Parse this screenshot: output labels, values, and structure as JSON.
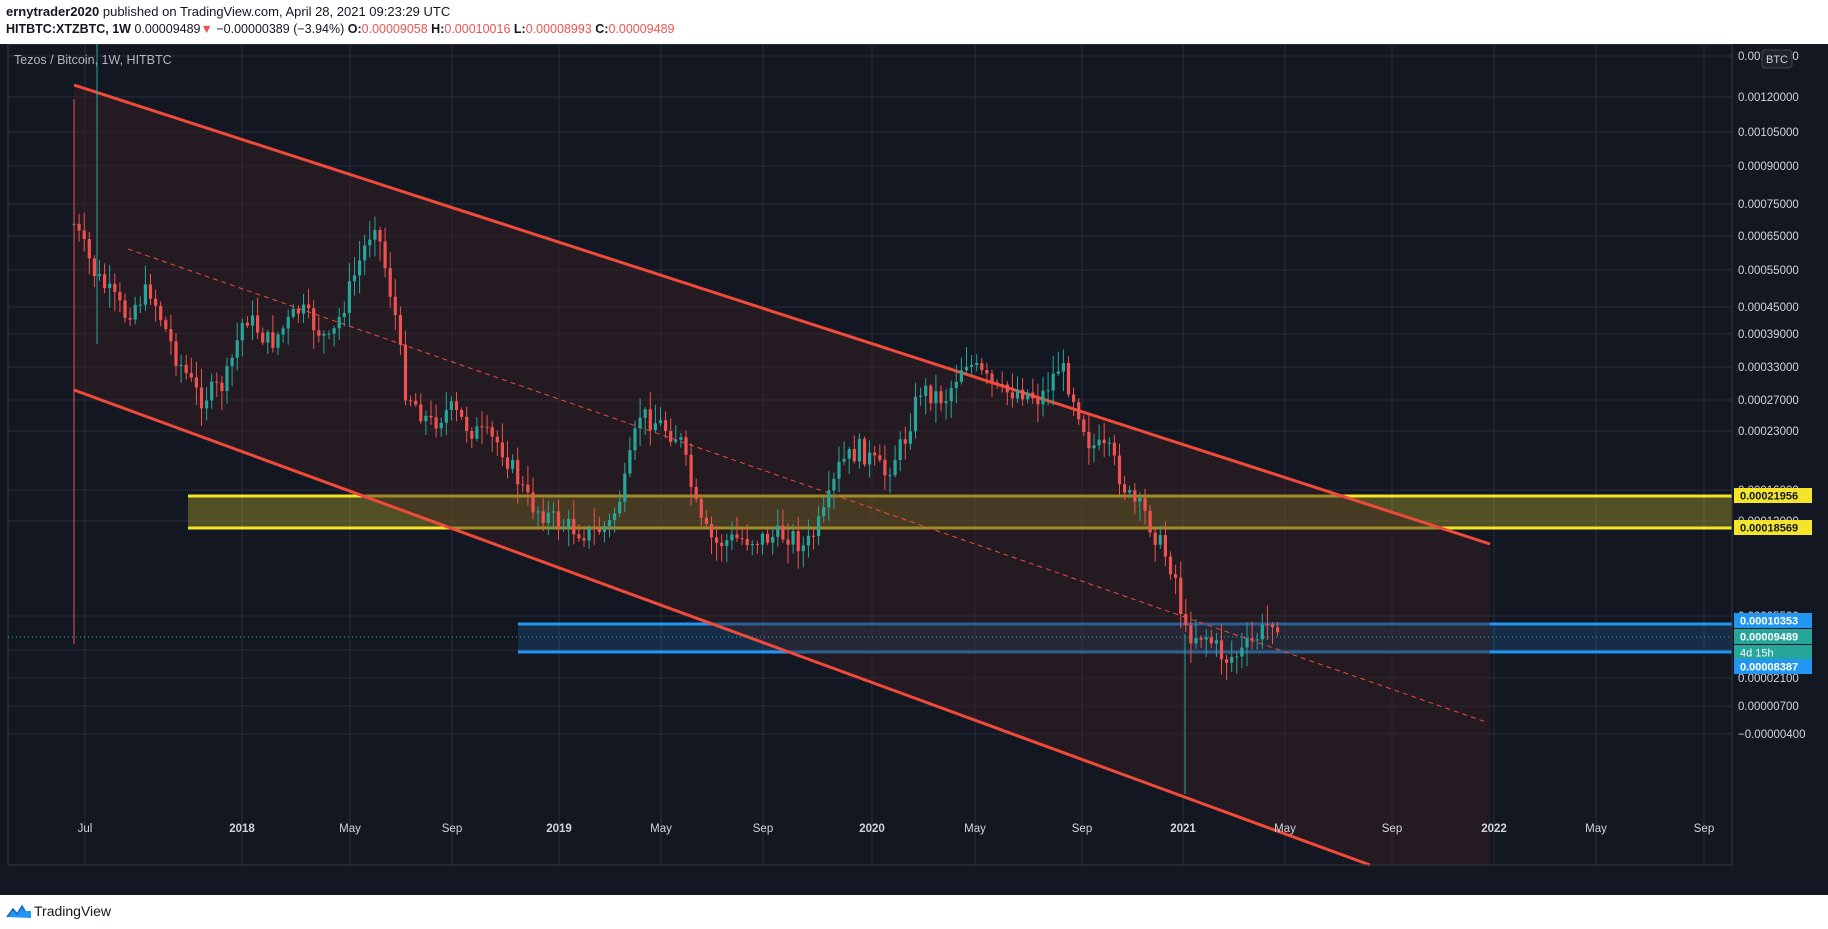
{
  "header": {
    "author": "ernytrader2020",
    "published_text": "published on TradingView.com, April 28, 2021 09:23:29 UTC",
    "symbol": "HITBTC:XTZBTC, 1W",
    "last": "0.00009489",
    "arrow": "▼",
    "change": "−0.00000389 (−3.94%)",
    "o_label": "O:",
    "o_value": "0.00009058",
    "h_label": "H:",
    "h_value": "0.00010016",
    "l_label": "L:",
    "l_value": "0.00008993",
    "c_label": "C:",
    "c_value": "0.00009489"
  },
  "chart_legend": "Tezos / Bitcoin, 1W, HITBTC",
  "currency_label": "BTC",
  "footer": {
    "brand": "TradingView"
  },
  "colors": {
    "background": "#131722",
    "up": "#26a69a",
    "down": "#ef5350",
    "channel": "#f04a3a",
    "yellow_zone": "#f5e52a",
    "blue_zone": "#2196f3",
    "grid": "#2a2e39"
  },
  "chart_data": {
    "type": "candlestick",
    "x_tick_labels": [
      "Jul",
      "2018",
      "May",
      "Sep",
      "2019",
      "May",
      "Sep",
      "2020",
      "May",
      "Sep",
      "2021",
      "May",
      "Sep",
      "2022",
      "May",
      "Sep"
    ],
    "y_tick_labels": [
      "0.00135000",
      "0.00120000",
      "0.00105000",
      "0.00090000",
      "0.00075000",
      "0.00065000",
      "0.00055000",
      "0.00045000",
      "0.00039000",
      "0.00033000",
      "0.00027000",
      "0.00023000",
      "0.00016000",
      "0.00013000",
      "0.00005500",
      "0.00003500",
      "0.00002100",
      "0.00000700",
      "−0.00000400"
    ],
    "price_labels": [
      {
        "value": "0.00021956",
        "kind": "yellow"
      },
      {
        "value": "0.00018569",
        "kind": "yellow"
      },
      {
        "value": "0.00010353",
        "kind": "blue"
      },
      {
        "value": "0.00009489",
        "kind": "current"
      },
      {
        "value": "4d 15h",
        "kind": "countdown"
      },
      {
        "value": "0.00008387",
        "kind": "blue"
      }
    ],
    "zones": [
      {
        "name": "resistance",
        "top": 0.00021956,
        "bottom": 0.00018569,
        "from": "2017-10",
        "to": "2022-09"
      },
      {
        "name": "support",
        "top": 0.00010353,
        "bottom": 8.387e-05,
        "from": "2018-11",
        "to": "2022-09"
      }
    ],
    "channel": {
      "upper_start": 0.0012,
      "lower_start": 0.00025,
      "from": "2017-07",
      "type": "descending"
    },
    "current_price": 9.489e-05
  }
}
